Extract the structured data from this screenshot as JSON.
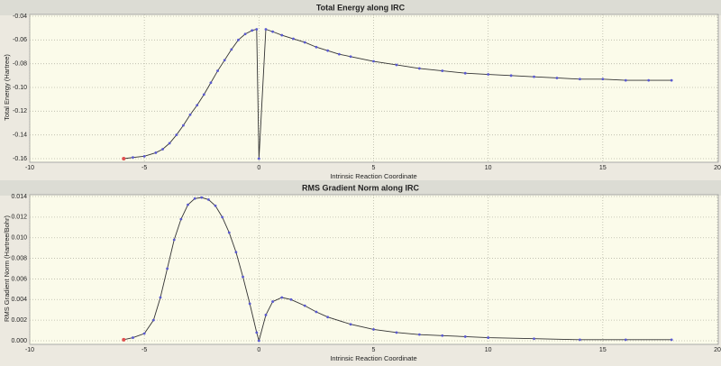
{
  "chart_data": [
    {
      "type": "line",
      "title": "Total Energy along IRC",
      "x_label": "Intrinsic Reaction Coordinate",
      "y_label": "Total Energy (Hartree)",
      "x": [
        -5.9,
        -5.5,
        -5,
        -4.5,
        -4.2,
        -3.9,
        -3.6,
        -3.3,
        -3,
        -2.7,
        -2.4,
        -2.1,
        -1.8,
        -1.5,
        -1.2,
        -0.9,
        -0.6,
        -0.3,
        -0.1,
        0,
        0.3,
        0.6,
        1,
        1.5,
        2,
        2.5,
        3,
        3.5,
        4,
        5,
        6,
        7,
        8,
        9,
        10,
        11,
        12,
        13,
        14,
        15,
        16,
        17,
        18
      ],
      "values": [
        -0.16,
        -0.159,
        -0.158,
        -0.155,
        -0.152,
        -0.147,
        -0.14,
        -0.132,
        -0.123,
        -0.115,
        -0.106,
        -0.096,
        -0.086,
        -0.077,
        -0.068,
        -0.06,
        -0.055,
        -0.052,
        -0.051,
        -0.16,
        -0.051,
        -0.053,
        -0.056,
        -0.059,
        -0.062,
        -0.066,
        -0.069,
        -0.072,
        -0.074,
        -0.078,
        -0.081,
        -0.084,
        -0.086,
        -0.088,
        -0.089,
        -0.09,
        -0.091,
        -0.092,
        -0.093,
        -0.093,
        -0.094,
        -0.094,
        -0.094
      ],
      "xlim": [
        -10,
        20
      ],
      "xticks": [
        -10,
        -5,
        0,
        5,
        10,
        15,
        20
      ],
      "ylim": [
        -0.16,
        -0.04
      ],
      "yticks": [
        {
          "value": -0.16,
          "label": "-0.16"
        },
        {
          "value": -0.14,
          "label": "-0.14"
        },
        {
          "value": -0.12,
          "label": "-0.12"
        },
        {
          "value": -0.1,
          "label": "-0.10"
        },
        {
          "value": -0.08,
          "label": "-0.08"
        },
        {
          "value": -0.06,
          "label": "-0.06"
        },
        {
          "value": -0.04,
          "label": "-0.04"
        }
      ],
      "grid": true,
      "color": "#5a5ad0",
      "line_color": "#333333",
      "highlight_color": "#e05050"
    },
    {
      "type": "line",
      "title": "RMS Gradient Norm along IRC",
      "x_label": "Intrinsic Reaction Coordinate",
      "y_label": "RMS Gradient Norm (Hartree/Bohr)",
      "x": [
        -5.9,
        -5.5,
        -5,
        -4.6,
        -4.3,
        -4,
        -3.7,
        -3.4,
        -3.1,
        -2.8,
        -2.5,
        -2.2,
        -1.9,
        -1.6,
        -1.3,
        -1,
        -0.7,
        -0.4,
        -0.1,
        0,
        0.3,
        0.6,
        1,
        1.4,
        2,
        2.5,
        3,
        4,
        5,
        6,
        7,
        8,
        9,
        10,
        12,
        14,
        16,
        18
      ],
      "values": [
        0.0001,
        0.0003,
        0.0007,
        0.002,
        0.0042,
        0.007,
        0.0098,
        0.0118,
        0.0132,
        0.0138,
        0.0139,
        0.0137,
        0.0131,
        0.012,
        0.0105,
        0.0086,
        0.0062,
        0.0036,
        0.0008,
        0,
        0.0025,
        0.0038,
        0.0042,
        0.004,
        0.0034,
        0.0028,
        0.0023,
        0.0016,
        0.0011,
        0.0008,
        0.0006,
        0.0005,
        0.0004,
        0.0003,
        0.0002,
        0.0001,
        0.0001,
        0.0001
      ],
      "xlim": [
        -10,
        20
      ],
      "xticks": [
        -10,
        -5,
        0,
        5,
        10,
        15,
        20
      ],
      "ylim": [
        0,
        0.014
      ],
      "yticks": [
        {
          "value": 0,
          "label": "0.000"
        },
        {
          "value": 0.002,
          "label": "0.002"
        },
        {
          "value": 0.004,
          "label": "0.004"
        },
        {
          "value": 0.006,
          "label": "0.006"
        },
        {
          "value": 0.008,
          "label": "0.008"
        },
        {
          "value": 0.01,
          "label": "0.010"
        },
        {
          "value": 0.012,
          "label": "0.012"
        },
        {
          "value": 0.014,
          "label": "0.014"
        }
      ],
      "grid": true,
      "color": "#5a5ad0",
      "line_color": "#333333",
      "highlight_color": "#e05050"
    }
  ]
}
